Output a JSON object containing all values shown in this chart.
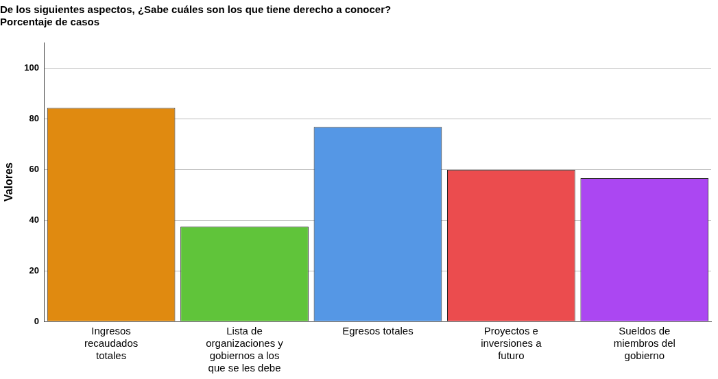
{
  "chart_data": {
    "type": "bar",
    "title": "De los siguientes aspectos, ¿Sabe cuáles son los que tiene derecho a conocer?",
    "subtitle": "Porcentaje de casos",
    "ylabel": "Valores",
    "categories": [
      "Ingresos recaudados totales",
      "Lista de organizaciones y gobiernos a los que se les debe",
      "Egresos totales",
      "Proyectos e inversiones a futuro",
      "Sueldos de miembros del gobierno"
    ],
    "values": [
      84.2,
      37.4,
      76.7,
      59.8,
      56.5
    ],
    "colors": [
      "#e08a10",
      "#60c43a",
      "#5597e5",
      "#eb4c4e",
      "#ab47f2"
    ],
    "ylim": [
      0,
      110
    ],
    "yticks": [
      0,
      20,
      40,
      60,
      80,
      100
    ],
    "grid": "y",
    "legend": false
  }
}
